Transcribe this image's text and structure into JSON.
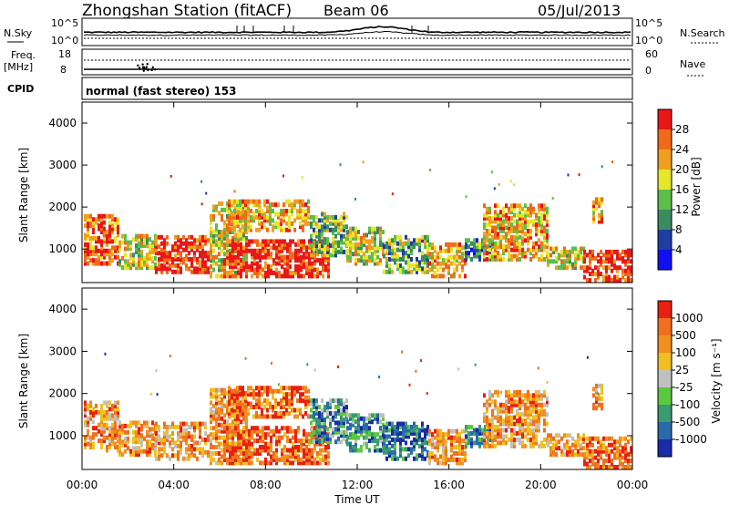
{
  "header": {
    "station": "Zhongshan Station (fitACF)",
    "beam": "Beam 06",
    "date": "05/Jul/2013"
  },
  "top_panel": {
    "left_label": "N.Sky",
    "right_label": "N.Search",
    "left_ticks": [
      "10^5",
      "10^0"
    ],
    "right_ticks": [
      "10^5",
      "10^0"
    ]
  },
  "freq_panel": {
    "left_label_1": "Freq.",
    "left_label_2": "[MHz]",
    "left_ticks": [
      "18",
      "8"
    ],
    "right_label": "Nave",
    "right_ticks": [
      "60",
      "0"
    ]
  },
  "cpid": {
    "label": "CPID",
    "value": "normal (fast stereo) 153"
  },
  "chart_data": [
    {
      "type": "heatmap",
      "name": "power",
      "ylabel": "Slant Range [km]",
      "y_ticks": [
        "1000",
        "2000",
        "3000",
        "4000"
      ],
      "ylim": [
        200,
        4500
      ],
      "colorbar_label": "Power [dB]",
      "colorbar_ticks": [
        "4",
        "8",
        "12",
        "16",
        "20",
        "24",
        "28"
      ],
      "colors": [
        "#1010f0",
        "#1e3fa0",
        "#3a8c60",
        "#5cbf4a",
        "#e6e62a",
        "#f0a020",
        "#f06a1a",
        "#e81818"
      ]
    },
    {
      "type": "heatmap",
      "name": "velocity",
      "ylabel": "Slant Range [km]",
      "y_ticks": [
        "1000",
        "2000",
        "3000",
        "4000"
      ],
      "ylim": [
        200,
        4500
      ],
      "colorbar_label": "Velocity [m s⁻¹]",
      "colorbar_ticks": [
        "1000",
        "500",
        "100",
        "25",
        "-25",
        "-100",
        "-500",
        "-1000"
      ],
      "colors": [
        "#1a2aa8",
        "#2a6aa8",
        "#3a9a70",
        "#5cc840",
        "#c0c0c0",
        "#f0c020",
        "#f09020",
        "#f07020",
        "#e82010"
      ]
    }
  ],
  "time_axis": {
    "ticks": [
      "00:00",
      "04:00",
      "08:00",
      "12:00",
      "16:00",
      "20:00",
      "00:00"
    ],
    "label": "Time UT"
  }
}
